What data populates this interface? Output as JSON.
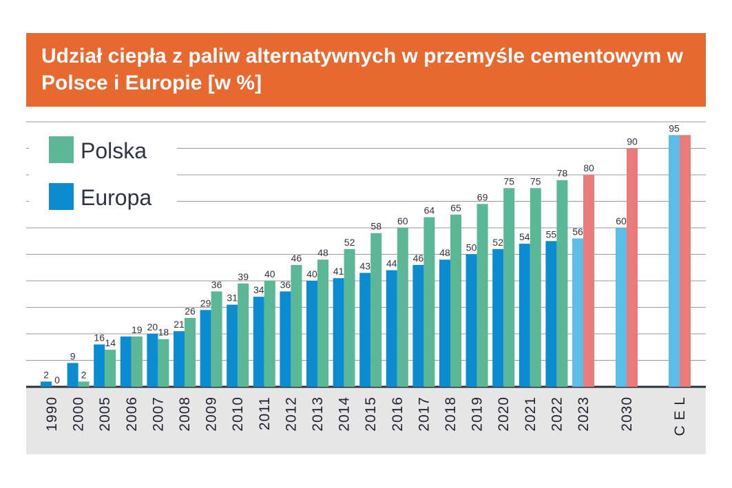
{
  "header": {
    "title": "Udział ciepła z paliw alternatywnych w przemyśle cementowym w Polsce i Europie [w %]"
  },
  "colors": {
    "header_bg": "#e8692f",
    "polska": "#5bb795",
    "europa": "#0b8bd0",
    "forecast_europa": "#5bbde8",
    "forecast_polska": "#ea7b7c",
    "grid": "#9a9a9a",
    "axis_band": "#e6e6e6"
  },
  "legend": [
    {
      "label": "Polska",
      "color": "#5bb795"
    },
    {
      "label": "Europa",
      "color": "#0b8bd0"
    }
  ],
  "chart_data": {
    "type": "bar",
    "title": "Udział ciepła z paliw alternatywnych w przemyśle cementowym w Polsce i Europie [w %]",
    "xlabel": "",
    "ylabel": "",
    "ylim": [
      0,
      100
    ],
    "grid": true,
    "legend_position": "top-left",
    "categories": [
      "1990",
      "2000",
      "2005",
      "2006",
      "2007",
      "2008",
      "2009",
      "2010",
      "2011",
      "2012",
      "2013",
      "2014",
      "2015",
      "2016",
      "2017",
      "2018",
      "2019",
      "2020",
      "2021",
      "2022",
      "2023",
      "2030",
      "C E L"
    ],
    "forecast_categories": [
      "2023",
      "2030",
      "C E L"
    ],
    "series": [
      {
        "name": "Europa",
        "values": [
          2,
          9,
          16,
          19,
          20,
          21,
          29,
          31,
          34,
          36,
          40,
          41,
          43,
          44,
          46,
          48,
          50,
          52,
          54,
          55,
          56,
          60,
          95
        ]
      },
      {
        "name": "Polska",
        "values": [
          0,
          2,
          14,
          19,
          18,
          26,
          36,
          39,
          40,
          46,
          48,
          52,
          58,
          60,
          64,
          65,
          69,
          75,
          75,
          78,
          80,
          90,
          95
        ]
      }
    ],
    "labels": {
      "Europa": [
        "2",
        "9",
        "16",
        "",
        "20",
        "21",
        "29",
        "31",
        "34",
        "36",
        "40",
        "41",
        "43",
        "44",
        "46",
        "48",
        "50",
        "52",
        "54",
        "55",
        "56",
        "60",
        "95"
      ],
      "Polska": [
        "0",
        "2",
        "14",
        "19",
        "18",
        "26",
        "36",
        "39",
        "40",
        "46",
        "48",
        "52",
        "58",
        "60",
        "64",
        "65",
        "69",
        "75",
        "75",
        "78",
        "80",
        "90",
        ""
      ]
    }
  }
}
